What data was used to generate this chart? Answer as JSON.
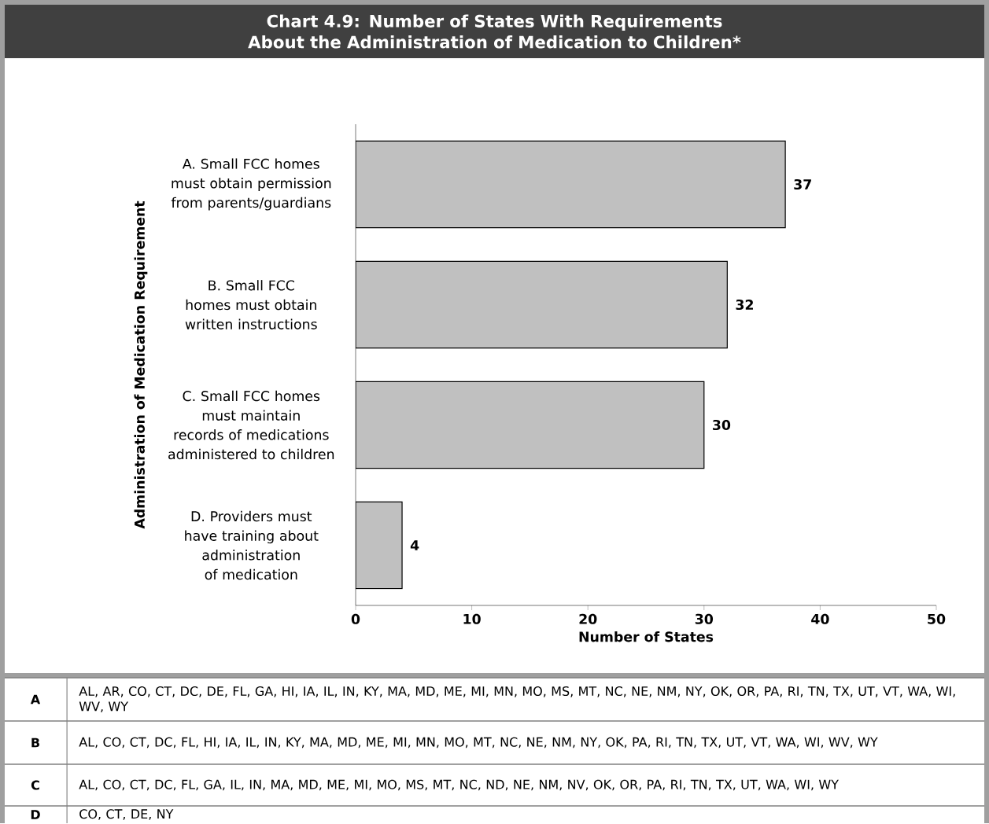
{
  "chart_data": {
    "type": "bar",
    "orientation": "horizontal",
    "title": "Chart 4.9: Number of States With Requirements About the Administration of Medication to Children*",
    "categories": [
      "A. Small FCC homes must obtain permission from parents/guardians",
      "B. Small FCC homes must obtain written instructions",
      "C. Small FCC homes must maintain records of medications administered to children",
      "D. Providers must have training about administration of medication"
    ],
    "values": [
      37,
      32,
      30,
      4
    ],
    "color": "#c0c0c0",
    "data_labels": true,
    "xlim": [
      0,
      50
    ],
    "xticks": [
      0,
      10,
      20,
      30,
      40,
      50
    ],
    "xlabel": "Number of States",
    "ylabel": "Administration of Medication Requirement",
    "grid": false,
    "annotations": [
      "A",
      "AL, AR, CO, CT, DC, DE, FL, GA, HI, IA, IL, IN, KY, MA, MD, ME, MI, MN, MO, MS, MT, NC, NE, NM, NY, OK, OR, PA, RI, TN, TX, UT, VT, WA, WI, WV, WY",
      "B",
      "AL, CO, CT, DC, FL, HI, IA, IL, IN, KY, MA, MD, ME, MI, MN, MO, MT, NC, NE, NM, NY, OK, PA, RI, TN, TX, UT, VT, WA, WI, WV, WY",
      "C",
      "AL, CO, CT, DC, FL, GA, IL, IN, MA, MD, ME, MI, MO, MS, MT, NC, ND, NE, NM, NV, OK, OR, PA, RI, TN, TX, UT, WA, WI, WY",
      "D",
      "CO, CT, DE, NY"
    ]
  }
}
